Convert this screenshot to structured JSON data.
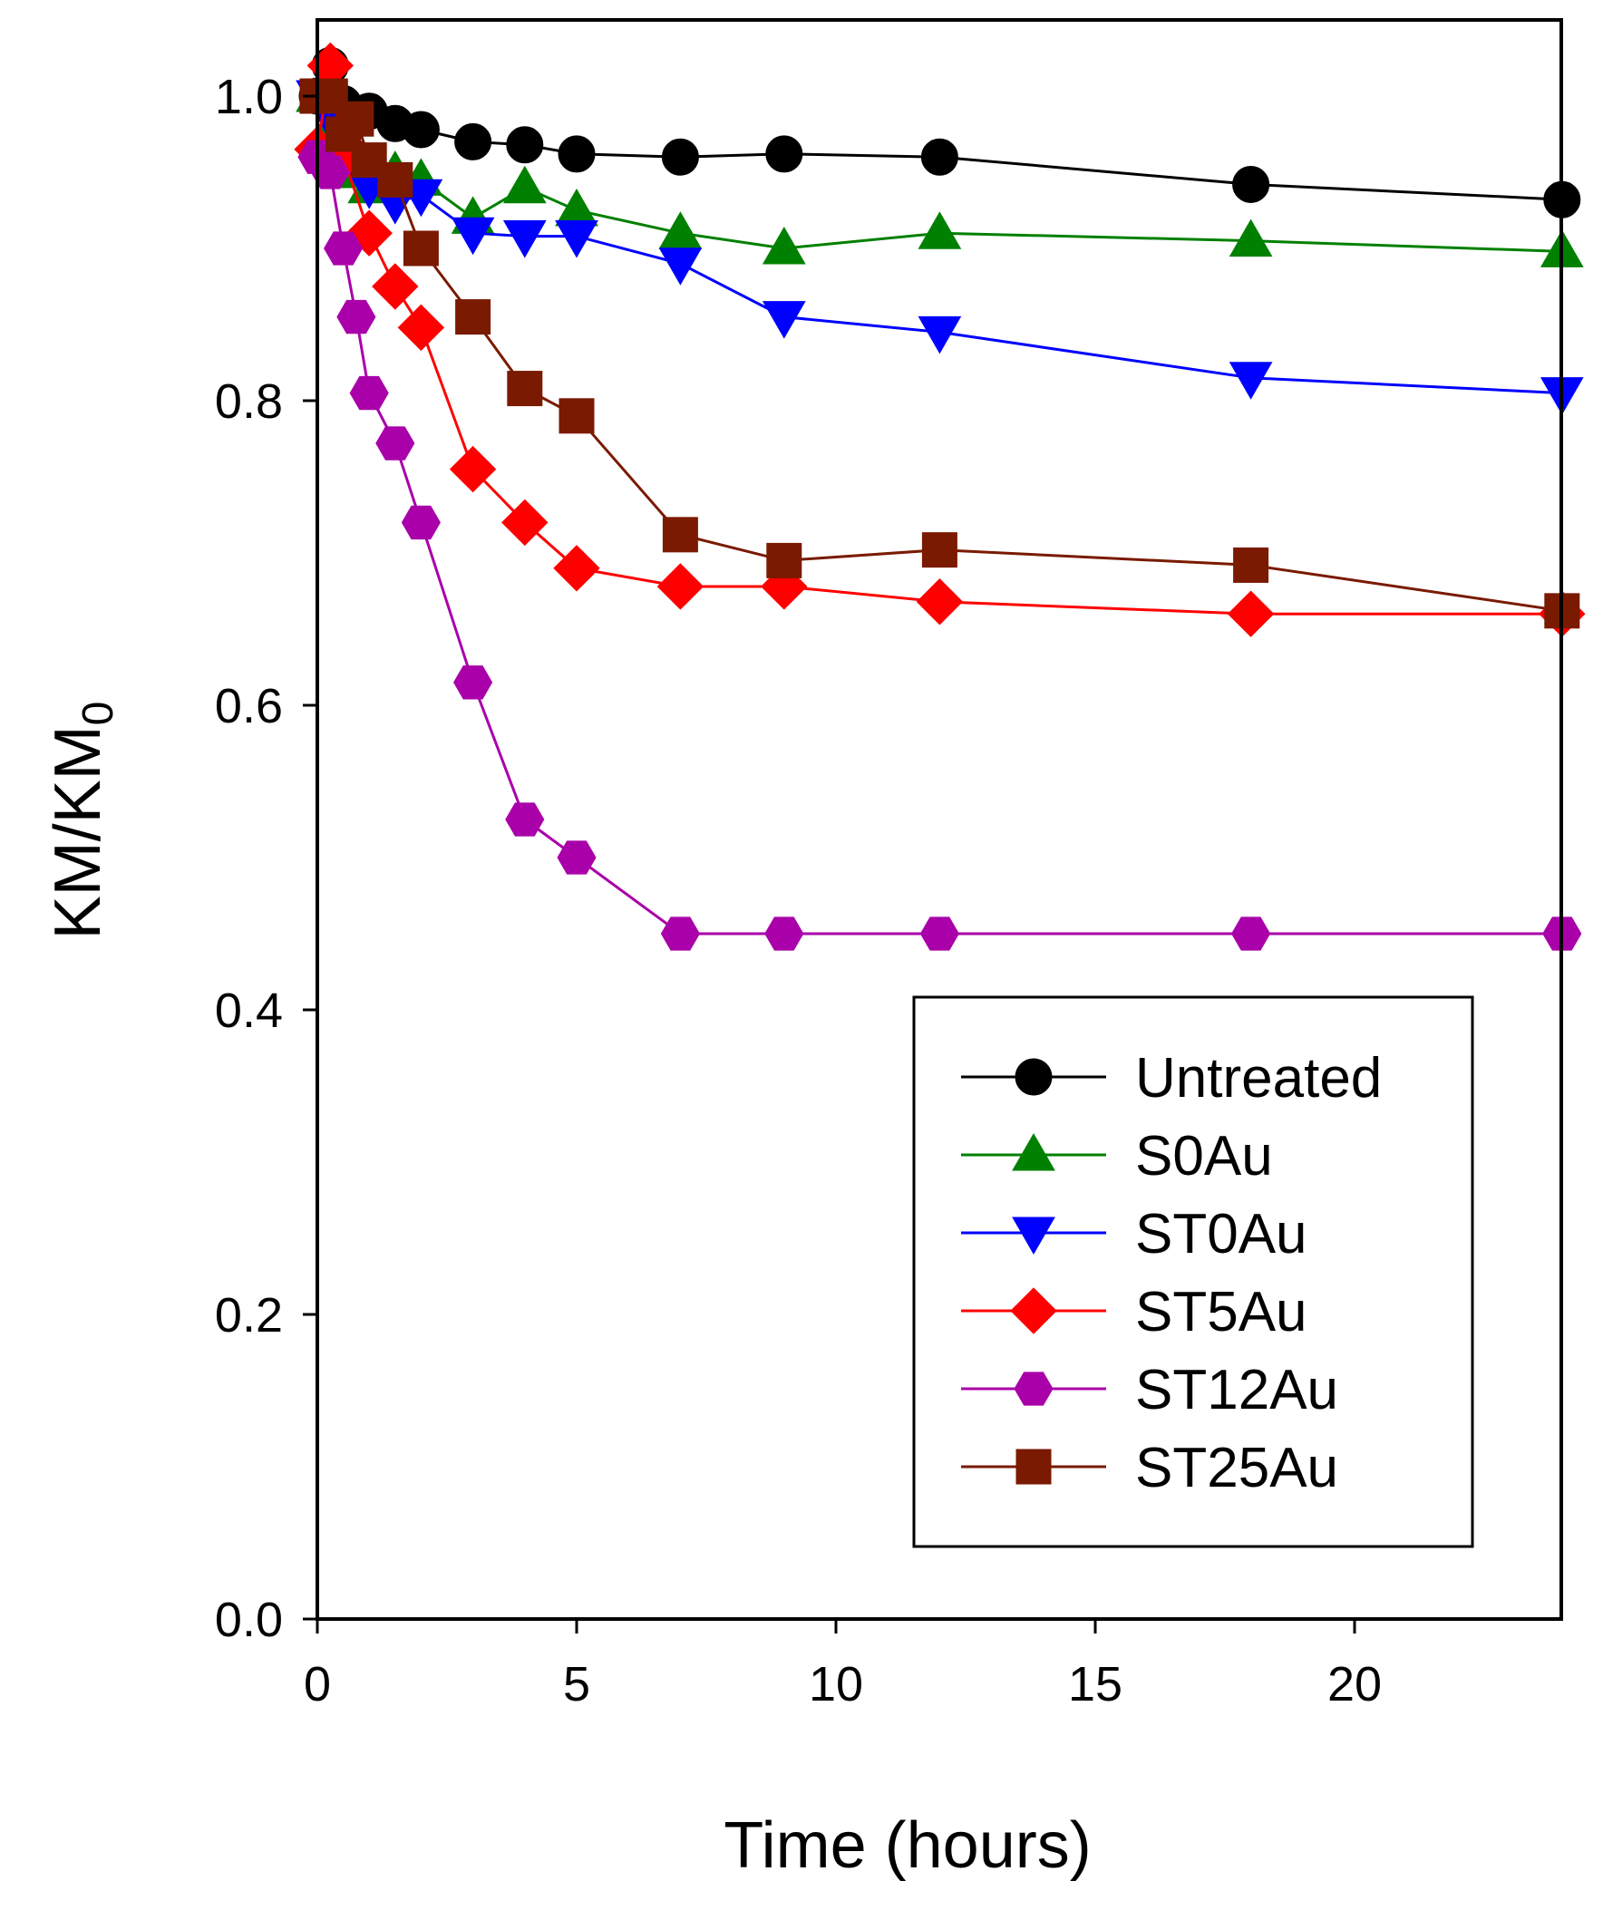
{
  "chart_data": {
    "type": "line",
    "title": "",
    "xlabel": "Time (hours)",
    "ylabel_main": "KM/KM",
    "ylabel_subscript": "0",
    "xlim": [
      0,
      24
    ],
    "ylim": [
      0.0,
      1.0
    ],
    "x_ticks": [
      0,
      5,
      10,
      15,
      20
    ],
    "x_tick_labels": [
      "0",
      "5",
      "10",
      "15",
      "20"
    ],
    "y_ticks": [
      0.0,
      0.2,
      0.4,
      0.6,
      0.8,
      1.0
    ],
    "y_tick_labels": [
      "0.0",
      "0.2",
      "0.4",
      "0.6",
      "0.8",
      "1.0"
    ],
    "grid": false,
    "legend_position": "bottom-right",
    "series": [
      {
        "name": "Untreated",
        "color": "#000000",
        "marker": "circle",
        "x": [
          0,
          0.25,
          0.5,
          1,
          1.5,
          2,
          3,
          4,
          5,
          7,
          9,
          12,
          18,
          24
        ],
        "y": [
          1.0,
          1.02,
          0.995,
          0.99,
          0.982,
          0.978,
          0.97,
          0.968,
          0.962,
          0.96,
          0.962,
          0.96,
          0.942,
          0.932
        ]
      },
      {
        "name": "S0Au",
        "color": "#008000",
        "marker": "triangle-up",
        "x": [
          0,
          0.25,
          0.5,
          1,
          1.5,
          2,
          3,
          4,
          5,
          7,
          9,
          12,
          18,
          24
        ],
        "y": [
          1.0,
          0.98,
          0.95,
          0.94,
          0.95,
          0.945,
          0.92,
          0.94,
          0.925,
          0.91,
          0.9,
          0.91,
          0.905,
          0.898
        ]
      },
      {
        "name": "ST0Au",
        "color": "#0000ff",
        "marker": "triangle-down",
        "x": [
          0,
          0.25,
          0.5,
          1,
          1.5,
          2,
          3,
          4,
          5,
          7,
          9,
          12,
          18,
          24
        ],
        "y": [
          1.0,
          0.985,
          0.96,
          0.94,
          0.93,
          0.935,
          0.91,
          0.908,
          0.908,
          0.89,
          0.855,
          0.845,
          0.815,
          0.805
        ]
      },
      {
        "name": "ST5Au",
        "color": "#ff0000",
        "marker": "diamond",
        "x": [
          0,
          0.25,
          0.5,
          1,
          1.5,
          2,
          3,
          4,
          5,
          7,
          9,
          12,
          18,
          24
        ],
        "y": [
          0.965,
          1.02,
          0.96,
          0.91,
          0.875,
          0.848,
          0.755,
          0.72,
          0.69,
          0.678,
          0.678,
          0.668,
          0.66,
          0.66
        ]
      },
      {
        "name": "ST12Au",
        "color": "#aa00aa",
        "marker": "hexagon",
        "x": [
          0,
          0.25,
          0.5,
          0.75,
          1,
          1.5,
          2,
          3,
          4,
          5,
          7,
          9,
          12,
          18,
          24
        ],
        "y": [
          0.96,
          0.95,
          0.9,
          0.855,
          0.805,
          0.772,
          0.72,
          0.615,
          0.525,
          0.5,
          0.45,
          0.45,
          0.45,
          0.45,
          0.45
        ]
      },
      {
        "name": "ST25Au",
        "color": "#7a1a00",
        "marker": "square",
        "x": [
          0,
          0.25,
          0.5,
          0.75,
          1,
          1.5,
          2,
          3,
          4,
          5,
          7,
          9,
          12,
          18,
          24
        ],
        "y": [
          1.0,
          1.0,
          0.975,
          0.985,
          0.958,
          0.945,
          0.9,
          0.855,
          0.808,
          0.79,
          0.712,
          0.695,
          0.702,
          0.692,
          0.662
        ]
      }
    ]
  }
}
